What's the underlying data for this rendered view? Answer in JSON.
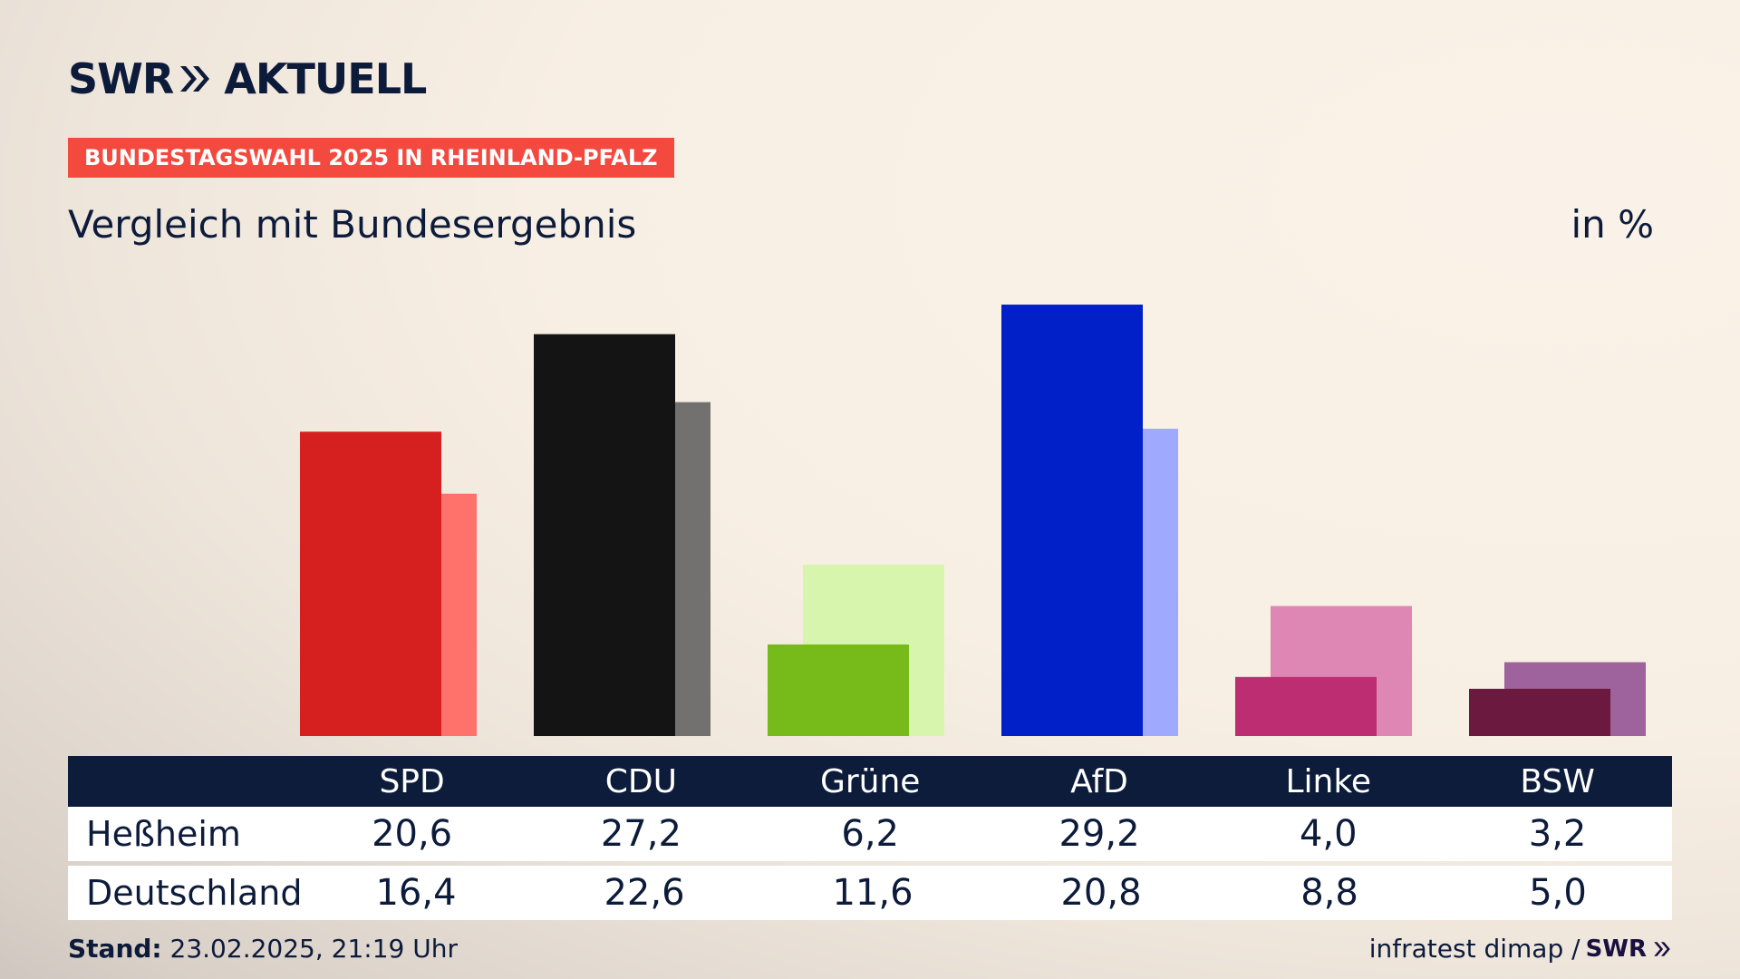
{
  "header": {
    "logo_left": "SWR",
    "logo_right": "AKTUELL",
    "badge": "BUNDESTAGSWAHL 2025 IN RHEINLAND-PFALZ",
    "subtitle": "Vergleich mit Bundesergebnis",
    "unit": "in %"
  },
  "chart_data": {
    "type": "bar",
    "categories": [
      "SPD",
      "CDU",
      "Grüne",
      "AfD",
      "Linke",
      "BSW"
    ],
    "series": [
      {
        "name": "Heßheim",
        "values": [
          20.6,
          27.2,
          6.2,
          29.2,
          4.0,
          3.2
        ]
      },
      {
        "name": "Deutschland",
        "values": [
          16.4,
          22.6,
          11.6,
          20.8,
          8.8,
          5.0
        ]
      }
    ],
    "colors_primary": [
      "#d6201f",
      "#141414",
      "#76bb1a",
      "#0120c8",
      "#bd2d72",
      "#6b193e"
    ],
    "colors_secondary": [
      "#ff726b",
      "#737170",
      "#d8f5ad",
      "#9faafd",
      "#de86b4",
      "#9e629c"
    ],
    "ylim": [
      0,
      30
    ],
    "grid": false
  },
  "table": {
    "headers": [
      "SPD",
      "CDU",
      "Grüne",
      "AfD",
      "Linke",
      "BSW"
    ],
    "rows": [
      {
        "label": "Heßheim",
        "values": [
          "20,6",
          "27,2",
          "6,2",
          "29,2",
          "4,0",
          "3,2"
        ]
      },
      {
        "label": "Deutschland",
        "values": [
          "16,4",
          "22,6",
          "11,6",
          "20,8",
          "8,8",
          "5,0"
        ]
      }
    ]
  },
  "footer": {
    "stand_label": "Stand:",
    "stand_value": "23.02.2025, 21:19 Uhr",
    "source": "infratest dimap /",
    "source_logo": "SWR"
  }
}
